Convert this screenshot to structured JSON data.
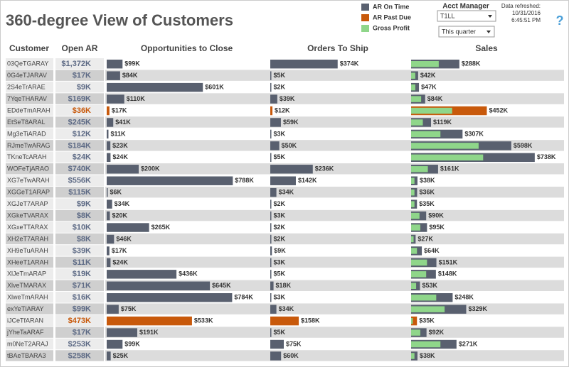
{
  "title": "360-degree View of Customers",
  "legend": [
    {
      "name": "AR On Time",
      "color": "#59606f"
    },
    {
      "name": "AR Past Due",
      "color": "#c8590b"
    },
    {
      "name": "Gross Profit",
      "color": "#8fd68a"
    }
  ],
  "filter": {
    "label": "Acct Manager",
    "value": "T1LL",
    "period": "This quarter"
  },
  "refresh": {
    "label": "Data refreshed:",
    "date": "10/31/2016",
    "time": "6:45:51 PM"
  },
  "help": "?",
  "past_due_rows": [
    4,
    22
  ],
  "table": {
    "headers": [
      "Customer",
      "Open AR"
    ],
    "customers": [
      "03QeTGARAY",
      "0G4eTJARAV",
      "2S4eTrARAE",
      "7YqeTHARAV",
      "EDdeTmARAH",
      "EtSeT8ARAL",
      "Mg3eTiARAD",
      "RJmeTwARAG",
      "TKneTcARAH",
      "WOFeTjARAO",
      "XG7eTwARAH",
      "XGGeT1ARAP",
      "XGJeT7ARAP",
      "XGkeTVARAX",
      "XGxeTTARAX",
      "XH2eT7ARAH",
      "XH9eTuARAH",
      "XHeeT1ARAH",
      "XlJeTmARAP",
      "XlveTMARAX",
      "XlweTmARAH",
      "exYeTIARAY",
      "iJCeTfARAN",
      "jYheTaARAF",
      "m0NeT2ARAJ",
      "tBAeTBARA3"
    ],
    "open_ar": [
      1372,
      17,
      9,
      169,
      36,
      245,
      12,
      184,
      24,
      740,
      556,
      115,
      9,
      8,
      10,
      8,
      39,
      11,
      19,
      71,
      16,
      99,
      473,
      17,
      253,
      258
    ],
    "open_ar_labels": [
      "$1,372K",
      "$17K",
      "$9K",
      "$169K",
      "$36K",
      "$245K",
      "$12K",
      "$184K",
      "$24K",
      "$740K",
      "$556K",
      "$115K",
      "$9K",
      "$8K",
      "$10K",
      "$8K",
      "$39K",
      "$11K",
      "$19K",
      "$71K",
      "$16K",
      "$99K",
      "$473K",
      "$17K",
      "$253K",
      "$258K"
    ]
  },
  "chart_data": [
    {
      "type": "bar",
      "title": "Opportunities to Close",
      "xlim": [
        0,
        1000
      ],
      "values": [
        99,
        84,
        601,
        110,
        17,
        41,
        11,
        23,
        24,
        200,
        788,
        6,
        34,
        20,
        265,
        46,
        17,
        24,
        436,
        645,
        784,
        75,
        533,
        191,
        99,
        25
      ],
      "value_labels": [
        "$99K",
        "$84K",
        "$601K",
        "$110K",
        "$17K",
        "$41K",
        "$11K",
        "$23K",
        "$24K",
        "$200K",
        "$788K",
        "$6K",
        "$34K",
        "$20K",
        "$265K",
        "$46K",
        "$17K",
        "$24K",
        "$436K",
        "$645K",
        "$784K",
        "$75K",
        "$533K",
        "$191K",
        "$99K",
        "$25K"
      ]
    },
    {
      "type": "bar",
      "title": "Orders To Ship",
      "xlim": [
        0,
        750
      ],
      "values": [
        374,
        5,
        2,
        39,
        12,
        59,
        3,
        50,
        5,
        236,
        142,
        34,
        2,
        3,
        2,
        2,
        9,
        3,
        5,
        18,
        3,
        34,
        158,
        5,
        75,
        60
      ],
      "value_labels": [
        "$374K",
        "$5K",
        "$2K",
        "$39K",
        "$12K",
        "$59K",
        "$3K",
        "$50K",
        "$5K",
        "$236K",
        "$142K",
        "$34K",
        "$2K",
        "$3K",
        "$2K",
        "$2K",
        "$9K",
        "$3K",
        "$5K",
        "$18K",
        "$3K",
        "$34K",
        "$158K",
        "$5K",
        "$75K",
        "$60K"
      ]
    },
    {
      "type": "bar",
      "title": "Sales",
      "xlim": [
        0,
        900
      ],
      "values": [
        288,
        42,
        47,
        84,
        452,
        119,
        307,
        598,
        738,
        161,
        38,
        36,
        35,
        90,
        95,
        27,
        64,
        151,
        148,
        53,
        248,
        329,
        35,
        92,
        271,
        38
      ],
      "value_labels": [
        "$288K",
        "$42K",
        "$47K",
        "$84K",
        "$452K",
        "$119K",
        "$307K",
        "$598K",
        "$738K",
        "$161K",
        "$38K",
        "$36K",
        "$35K",
        "$90K",
        "$95K",
        "$27K",
        "$64K",
        "$151K",
        "$148K",
        "$53K",
        "$248K",
        "$329K",
        "$35K",
        "$92K",
        "$271K",
        "$38K"
      ],
      "profit_values": [
        165,
        25,
        25,
        60,
        245,
        70,
        175,
        403,
        430,
        100,
        20,
        20,
        20,
        50,
        55,
        15,
        35,
        95,
        90,
        30,
        150,
        200,
        10,
        55,
        175,
        20
      ]
    }
  ]
}
